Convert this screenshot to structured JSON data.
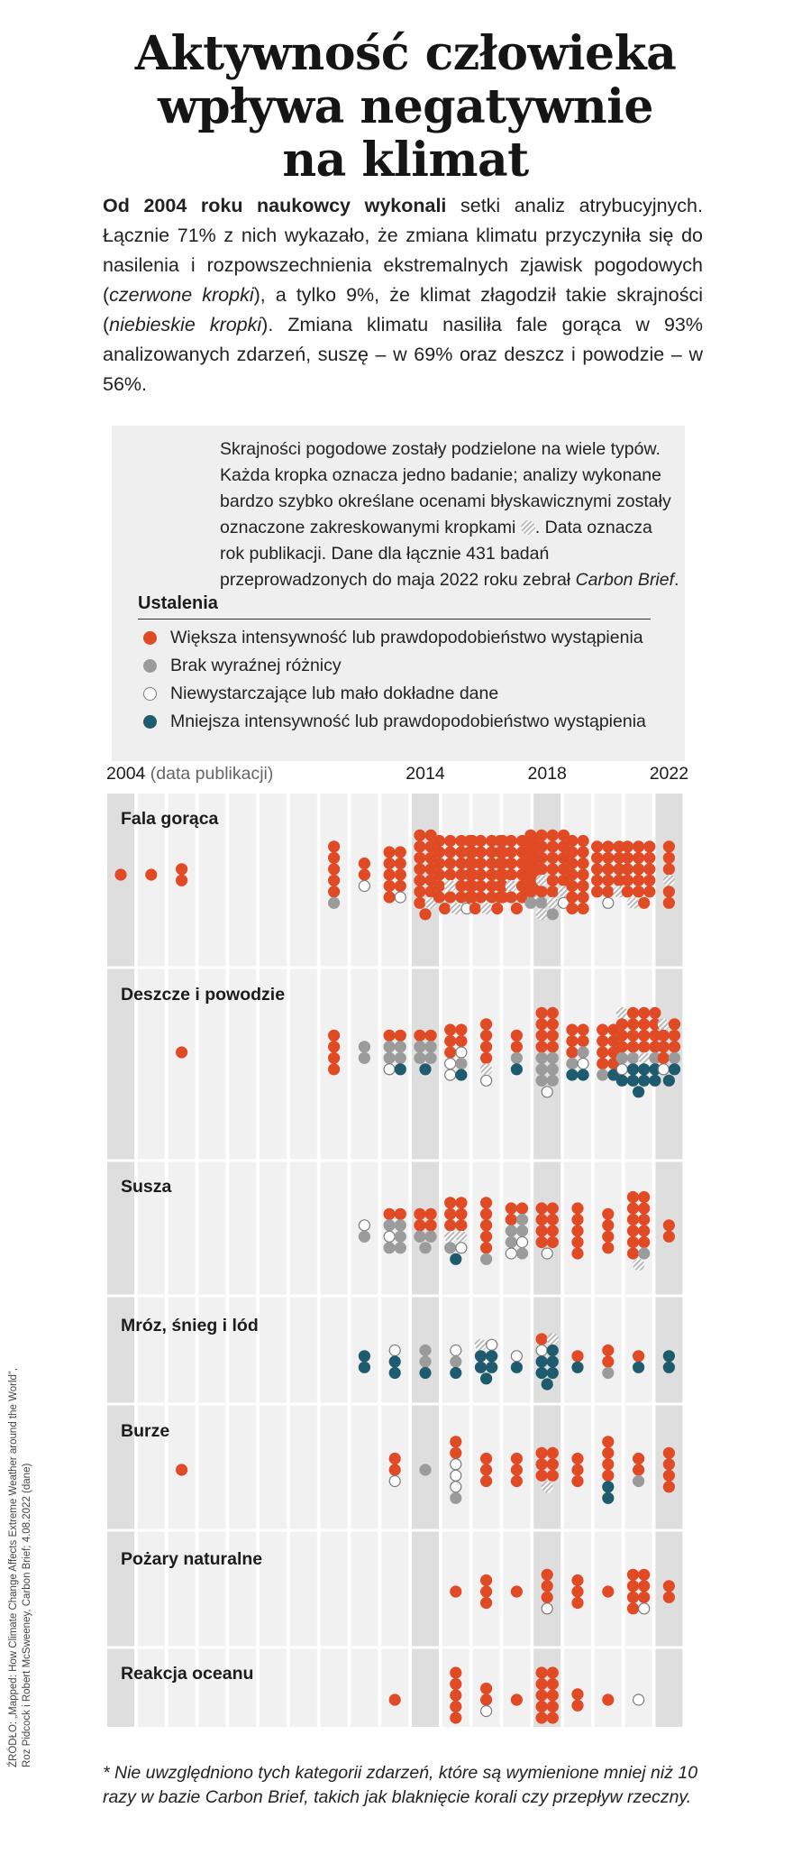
{
  "title_lines": [
    "Aktywność człowieka",
    "wpływa negatywnie",
    "na klimat"
  ],
  "intro": {
    "bold_lead": "Od 2004 roku naukowcy wykonali",
    "p1": " setki analiz atrybucyjnych. Łącznie 71% z nich wykazało, że zmiana klimatu przyczyniła się do nasilenia i rozpowszechnienia ekstremalnych zjawisk pogodowych (",
    "em1": "czerwone kropki",
    "p2": "), a tylko 9%, że klimat złagodził takie skrajności (",
    "em2": "niebieskie kropki",
    "p3": "). Zmiana klimatu nasiliła fale gorąca w 93% analizowanych zdarzeń, suszę – w 69% oraz deszcz i powodzie – w 56%."
  },
  "legend": {
    "description_a": "Skrajności pogodowe zostały podzielone na wiele typów. Każda kropka oznacza jedno badanie; analizy wykonane bardzo szybko określane ocenami błyskawicznymi zostały oznaczone zakreskowanymi kropkami",
    "description_b": ". Data oznacza rok publikacji. Dane dla łącznie 431 badań przeprowadzonych do maja 2022 roku zebrał ",
    "description_em": "Carbon Brief",
    "description_c": ".",
    "header": "Ustalenia",
    "items": [
      {
        "label": "Większa intensywność lub prawdopodobieństwo wystąpienia",
        "key": "more"
      },
      {
        "label": "Brak wyraźnej różnicy",
        "key": "none"
      },
      {
        "label": "Niewystarczające lub mało dokładne dane",
        "key": "insufficient"
      },
      {
        "label": "Mniejsza intensywność lub prawdopodobieństwo wystąpienia",
        "key": "less"
      }
    ]
  },
  "colors": {
    "more": "#e04a25",
    "none": "#9b9b9b",
    "insufficient": "#ffffff",
    "insufficient_stroke": "#7a7a7a",
    "less": "#1f5b6e",
    "hatch": "#b9b9b9",
    "col_light": "#f1f1f1",
    "col_dark": "#dedede",
    "legend_bg": "#efefef"
  },
  "chart_data": {
    "type": "dot-matrix",
    "x_label_first": "2004",
    "x_label_first_suffix": "(data publikacji)",
    "x_tick_labels": [
      "2014",
      "2018",
      "2022"
    ],
    "years": [
      2004,
      2005,
      2006,
      2007,
      2008,
      2009,
      2010,
      2011,
      2012,
      2013,
      2014,
      2015,
      2016,
      2017,
      2018,
      2019,
      2020,
      2021,
      2022
    ],
    "outcome_codes": {
      "m": "Większa intensywność lub prawdopodobieństwo wystąpienia",
      "h": "Większa intensywność lub prawdopodobieństwo wystąpienia (ocena błyskawiczna)",
      "n": "Brak wyraźnej różnicy",
      "i": "Niewystarczające lub mało dokładne dane",
      "l": "Mniejsza intensywność lub prawdopodobieństwo wystąpienia"
    },
    "categories": [
      {
        "name": "Fala gorąca",
        "studies": {
          "2004": "m",
          "2005": "m",
          "2006": "mm",
          "2011": "mmmmmn",
          "2012": "mmi",
          "2013": "mmmmmmmmmi",
          "2014": "mmmmmmmmmmmmmhm",
          "2015": "mmmmmmmmmmmmmmmmmhmmmmmmmhi",
          "2016": "mmmmmmmmmmmmmmmmmmmmmmmmmhm",
          "2017": "mmmmmmmmmmmmmmmmmhmmmmmhm",
          "2018": "mmmmmmmmmmmmmmmmmhmmmmmhnnhihn",
          "2019": "mmmmmmmmmmmmmm",
          "2020": "mmmmmmmmmmmmmmhi",
          "2021": "mmmmmmmmmmmmmmmhm",
          "2022": "mmmhmm"
        }
      },
      {
        "name": "Deszcze i powodzie",
        "studies": {
          "2006": "m",
          "2011": "mmmm",
          "2012": "nn",
          "2013": "mmnnnnil",
          "2014": "mmnnnnl",
          "2015": "mmmmmiinil",
          "2016": "mmmmhi",
          "2017": "mmnl",
          "2018": "mmmmmmmmnnnnnni",
          "2019": "mmmmmnnill",
          "2020": "mmmmmmmmnl",
          "2021": "hmmmmmmmmmmmmmmmnnhnillllllll",
          "2022": "hmmmmmmnill"
        }
      },
      {
        "name": "Susza",
        "studies": {
          "2012": "in",
          "2013": "mmnninnn",
          "2014": "mmmmnnn",
          "2015": "mmmmmmhhnil",
          "2016": "mmmmmn",
          "2017": "mmmnnnniin",
          "2018": "mmmmmmmmi",
          "2019": "mmmmm",
          "2020": "mmmm",
          "2021": "mmmmmmmmmmmnh",
          "2022": "mm"
        }
      },
      {
        "name": "Mróz, śnieg i lód",
        "studies": {
          "2012": "ll",
          "2013": "ill",
          "2014": "nnl",
          "2015": "inl",
          "2016": "hilllll",
          "2017": "il",
          "2018": "mhillllll",
          "2019": "ml",
          "2020": "mmn",
          "2021": "ml",
          "2022": "ll"
        }
      },
      {
        "name": "Burze",
        "studies": {
          "2006": "m",
          "2013": "mmi",
          "2014": "n",
          "2015": "mmiiin",
          "2016": "mmm",
          "2017": "mmm",
          "2018": "mmmmmmh",
          "2019": "mmm",
          "2020": "mmmmll",
          "2021": "mmn",
          "2022": "mmmm"
        }
      },
      {
        "name": "Pożary naturalne",
        "studies": {
          "2015": "m",
          "2016": "mmm",
          "2017": "m",
          "2018": "mmmi",
          "2019": "mmm",
          "2020": "m",
          "2021": "mmmmmmmi",
          "2022": "mm"
        }
      },
      {
        "name": "Reakcja oceanu",
        "studies": {
          "2013": "m",
          "2015": "mmmmm",
          "2016": "mmi",
          "2017": "m",
          "2018": "mmmmmmmmmm",
          "2019": "mm",
          "2020": "m",
          "2021": "i"
        }
      }
    ]
  },
  "footnote": "* Nie uwzględniono tych kategorii zdarzeń, które są wymienione mniej niż 10 razy w bazie Carbon Brief, takich jak blaknięcie korali czy przepływ rzeczny.",
  "source": {
    "line1": "ŹRÓDŁO: „Mapped: How Climate Change Affects Extreme Weather around the World”,",
    "line2": "Roz Pidcock i Robert McSweeney, Carbon Brief; 4.08.2022 (dane)"
  }
}
